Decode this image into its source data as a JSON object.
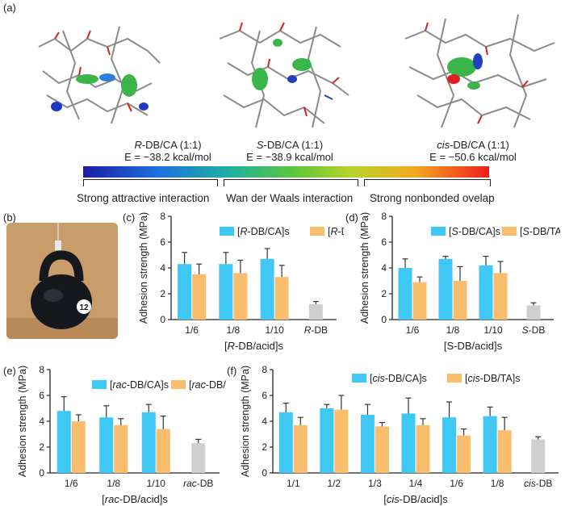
{
  "panel_labels": [
    "(a)",
    "(b)",
    "(c)",
    "(d)",
    "(e)",
    "(f)"
  ],
  "molecules": [
    {
      "name": "R-DB/CA (1:1)",
      "prefix": "R",
      "suffix": "-DB/CA (1:1)",
      "energy": "E = −38.2 kcal/mol"
    },
    {
      "name": "S-DB/CA (1:1)",
      "prefix": "S",
      "suffix": "-DB/CA (1:1)",
      "energy": "E = −38.9 kcal/mol"
    },
    {
      "name": "cis-DB/CA (1:1)",
      "prefix": "cis",
      "suffix": "-DB/CA (1:1)",
      "energy": "E = −50.6 kcal/mol"
    }
  ],
  "scale_labels": [
    "Strong attractive interaction",
    "Wan der Waals interaction",
    "Strong nonbonded ovelap"
  ],
  "kettlebell_label": "12",
  "colors": {
    "ca": "#3fc8f4",
    "ta": "#f9bd6e",
    "db": "#cfcfcf",
    "scale_low": "#1c1ca8",
    "scale_mid": "#5bc83a",
    "scale_high": "#ee1c1c"
  },
  "chart_data": [
    {
      "panel": "(c)",
      "type": "bar",
      "ylabel": "Adhesion strength (MPa)",
      "xlabel": "[R-DB/acid]s",
      "xlabel_italic": "R",
      "ylim": [
        0,
        8
      ],
      "yticks": [
        0,
        2,
        4,
        6,
        8
      ],
      "categories": [
        "1/6",
        "1/8",
        "1/10",
        "R-DB"
      ],
      "series": [
        {
          "name": "[R-DB/CA]s",
          "values": [
            4.3,
            4.3,
            4.7,
            null
          ],
          "errors": [
            0.9,
            0.9,
            0.8,
            null
          ]
        },
        {
          "name": "[R-DB/TA]s",
          "values": [
            3.5,
            3.6,
            3.3,
            null
          ],
          "errors": [
            0.8,
            1.0,
            0.9,
            null
          ]
        },
        {
          "name": "R-DB",
          "values": [
            null,
            null,
            null,
            1.2
          ],
          "errors": [
            null,
            null,
            null,
            0.2
          ]
        }
      ]
    },
    {
      "panel": "(d)",
      "type": "bar",
      "ylabel": "Adhesion strength (MPa)",
      "xlabel": "[S-DB/acid]s",
      "ylim": [
        0,
        8
      ],
      "yticks": [
        0,
        2,
        4,
        6,
        8
      ],
      "categories": [
        "1/6",
        "1/8",
        "1/10",
        "S-DB"
      ],
      "series": [
        {
          "name": "[S-DB/CA]s",
          "values": [
            4.0,
            4.7,
            4.2,
            null
          ],
          "errors": [
            0.7,
            0.2,
            0.7,
            null
          ]
        },
        {
          "name": "[S-DB/TA]s",
          "values": [
            2.9,
            3.0,
            3.6,
            null
          ],
          "errors": [
            0.4,
            1.1,
            0.9,
            null
          ]
        },
        {
          "name": "S-DB",
          "values": [
            null,
            null,
            null,
            1.1
          ],
          "errors": [
            null,
            null,
            null,
            0.2
          ]
        }
      ]
    },
    {
      "panel": "(e)",
      "type": "bar",
      "ylabel": "Adhesion strength (MPa)",
      "xlabel": "[rac-DB/acid]s",
      "xlabel_italic": "rac",
      "ylim": [
        0,
        8
      ],
      "yticks": [
        0,
        2,
        4,
        6,
        8
      ],
      "categories": [
        "1/6",
        "1/8",
        "1/10",
        "rac-DB"
      ],
      "series": [
        {
          "name": "[rac-DB/CA]s",
          "values": [
            4.8,
            4.3,
            4.7,
            null
          ],
          "errors": [
            1.1,
            0.9,
            0.6,
            null
          ]
        },
        {
          "name": "[rac-DB/TA]s",
          "values": [
            4.0,
            3.7,
            3.4,
            null
          ],
          "errors": [
            0.5,
            0.5,
            1.0,
            null
          ]
        },
        {
          "name": "rac-DB",
          "values": [
            null,
            null,
            null,
            2.3
          ],
          "errors": [
            null,
            null,
            null,
            0.3
          ]
        }
      ]
    },
    {
      "panel": "(f)",
      "type": "bar",
      "ylabel": "Adhesion strength (MPa)",
      "xlabel": "[cis-DB/acid]s",
      "xlabel_italic": "cis",
      "ylim": [
        0,
        8
      ],
      "yticks": [
        0,
        2,
        4,
        6,
        8
      ],
      "categories": [
        "1/1",
        "1/2",
        "1/3",
        "1/4",
        "1/6",
        "1/8",
        "cis-DB"
      ],
      "series": [
        {
          "name": "[cis-DB/CA]s",
          "values": [
            4.7,
            5.0,
            4.5,
            4.6,
            4.3,
            4.4,
            null
          ],
          "errors": [
            0.7,
            0.3,
            0.8,
            1.2,
            1.2,
            0.7,
            null
          ]
        },
        {
          "name": "[cis-DB/TA]s",
          "values": [
            3.7,
            4.9,
            3.6,
            3.7,
            2.9,
            3.3,
            null
          ],
          "errors": [
            0.6,
            1.1,
            0.3,
            0.5,
            0.5,
            1.0,
            null
          ]
        },
        {
          "name": "cis-DB",
          "values": [
            null,
            null,
            null,
            null,
            null,
            null,
            2.6
          ],
          "errors": [
            null,
            null,
            null,
            null,
            null,
            null,
            0.2
          ]
        }
      ]
    }
  ]
}
